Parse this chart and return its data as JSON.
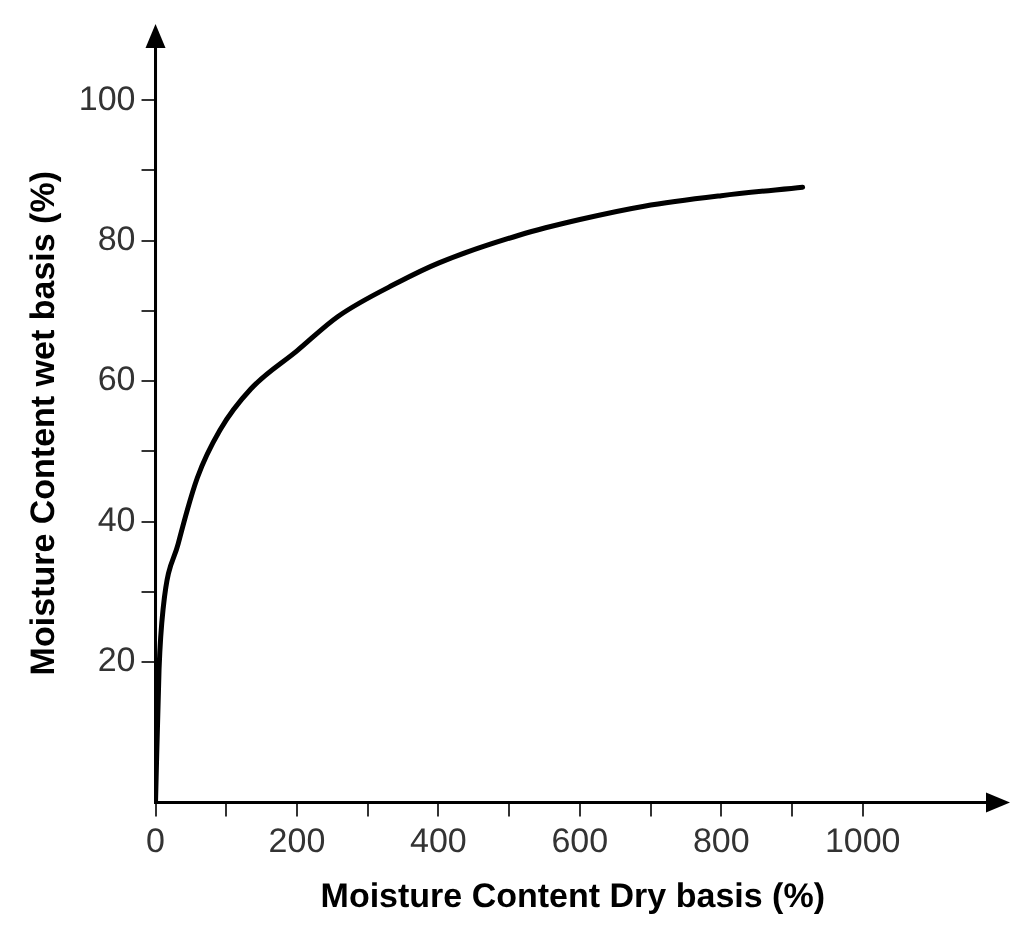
{
  "chart_data": {
    "type": "line",
    "xlabel": "Moisture Content Dry basis (%)",
    "ylabel": "Moisture Content wet basis (%)",
    "series": [
      {
        "color": "#000000",
        "x": [
          0,
          5,
          11,
          32,
          59,
          91,
          135,
          200,
          258,
          344,
          400,
          515,
          600,
          691,
          800,
          915
        ],
        "values": [
          0,
          19,
          27.8,
          36.8,
          46.2,
          53,
          58.9,
          64.3,
          69.2,
          74.1,
          76.8,
          80.8,
          83,
          84.9,
          86.4,
          87.6
        ]
      }
    ],
    "xlim": [
      0,
      1180
    ],
    "ylim": [
      0,
      108
    ],
    "xticks": [
      0,
      {
        "value": 100,
        "label": null
      },
      200,
      {
        "value": 300,
        "label": null
      },
      400,
      {
        "value": 500,
        "label": null
      },
      600,
      {
        "value": 700,
        "label": null
      },
      800,
      {
        "value": 900,
        "label": null
      },
      1000
    ],
    "yticks": [
      20,
      {
        "value": 30,
        "label": null
      },
      40,
      {
        "value": 50,
        "label": null
      },
      60,
      {
        "value": 70,
        "label": null
      },
      80,
      {
        "value": 90,
        "label": null
      },
      100
    ],
    "grid": false,
    "legend": false,
    "marker": "none",
    "line_style": "solid"
  }
}
